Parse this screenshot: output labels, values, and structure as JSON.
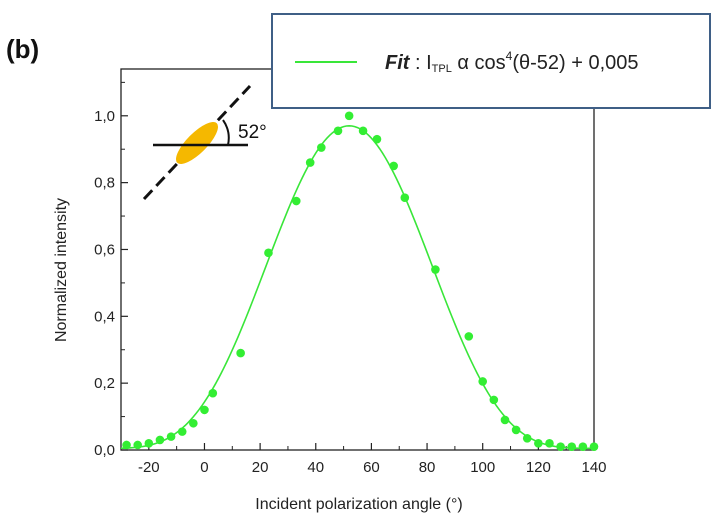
{
  "panel_label": "(b)",
  "inset": {
    "angle_label": "52°"
  },
  "legend": {
    "name": "Fit",
    "separator": " : ",
    "intensity": "I",
    "intensity_sub": "TPL",
    "relation": " α cos",
    "power": "4",
    "argument": "(θ-52) + 0,005"
  },
  "chart_data": {
    "type": "scatter",
    "xlabel": "Incident polarization angle (°)",
    "ylabel": "Normalized intensity",
    "xlim": [
      -30,
      140
    ],
    "ylim": [
      0,
      1.14
    ],
    "xticks": [
      -20,
      0,
      20,
      40,
      60,
      80,
      100,
      120,
      140
    ],
    "xtick_labels": [
      "-20",
      "0",
      "20",
      "40",
      "60",
      "80",
      "100",
      "120",
      "140"
    ],
    "yticks": [
      0,
      0.2,
      0.4,
      0.6,
      0.8,
      1.0
    ],
    "ytick_labels": [
      "0,0",
      "0,2",
      "0,4",
      "0,6",
      "0,8",
      "1,0"
    ],
    "colors": {
      "points": "#33ee33",
      "fit": "#39e639",
      "axis": "#222222",
      "inset_ellipse": "#f5b800"
    },
    "series": [
      {
        "kind": "points",
        "x": [
          -28,
          -24,
          -20,
          -16,
          -12,
          -8,
          -4,
          0,
          3,
          13,
          23,
          33,
          38,
          42,
          48,
          52,
          57,
          62,
          68,
          72,
          83,
          95,
          100,
          104,
          108,
          112,
          116,
          120,
          124,
          128,
          132,
          136,
          140
        ],
        "y": [
          0.015,
          0.015,
          0.02,
          0.03,
          0.04,
          0.055,
          0.08,
          0.12,
          0.17,
          0.29,
          0.59,
          0.745,
          0.86,
          0.905,
          0.955,
          1.0,
          0.955,
          0.93,
          0.85,
          0.755,
          0.54,
          0.34,
          0.205,
          0.15,
          0.09,
          0.06,
          0.035,
          0.02,
          0.02,
          0.01,
          0.01,
          0.01,
          0.01
        ]
      },
      {
        "kind": "fit",
        "function": "A*cos^4(theta-52)+c",
        "center": 52,
        "amplitude": 0.965,
        "offset": 0.005,
        "x_range": [
          -30,
          140
        ]
      }
    ]
  }
}
